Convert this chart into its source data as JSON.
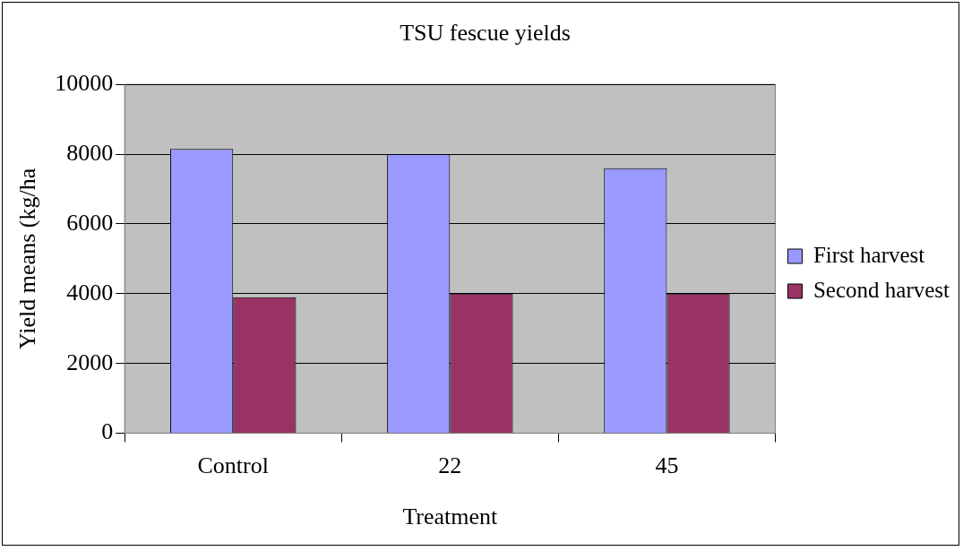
{
  "chart_data": {
    "type": "bar",
    "title": "TSU fescue yields",
    "xlabel": "Treatment",
    "ylabel": "Yield means (kg/ha",
    "categories": [
      "Control",
      "22",
      "45"
    ],
    "series": [
      {
        "name": "First harvest",
        "color": "#9999ff",
        "values": [
          8150,
          8000,
          7600
        ]
      },
      {
        "name": "Second harvest",
        "color": "#993366",
        "values": [
          3900,
          4000,
          4000
        ]
      }
    ],
    "ylim": [
      0,
      10000
    ],
    "yticks": [
      0,
      2000,
      4000,
      6000,
      8000,
      10000
    ],
    "grid": "y",
    "legend": "right"
  }
}
